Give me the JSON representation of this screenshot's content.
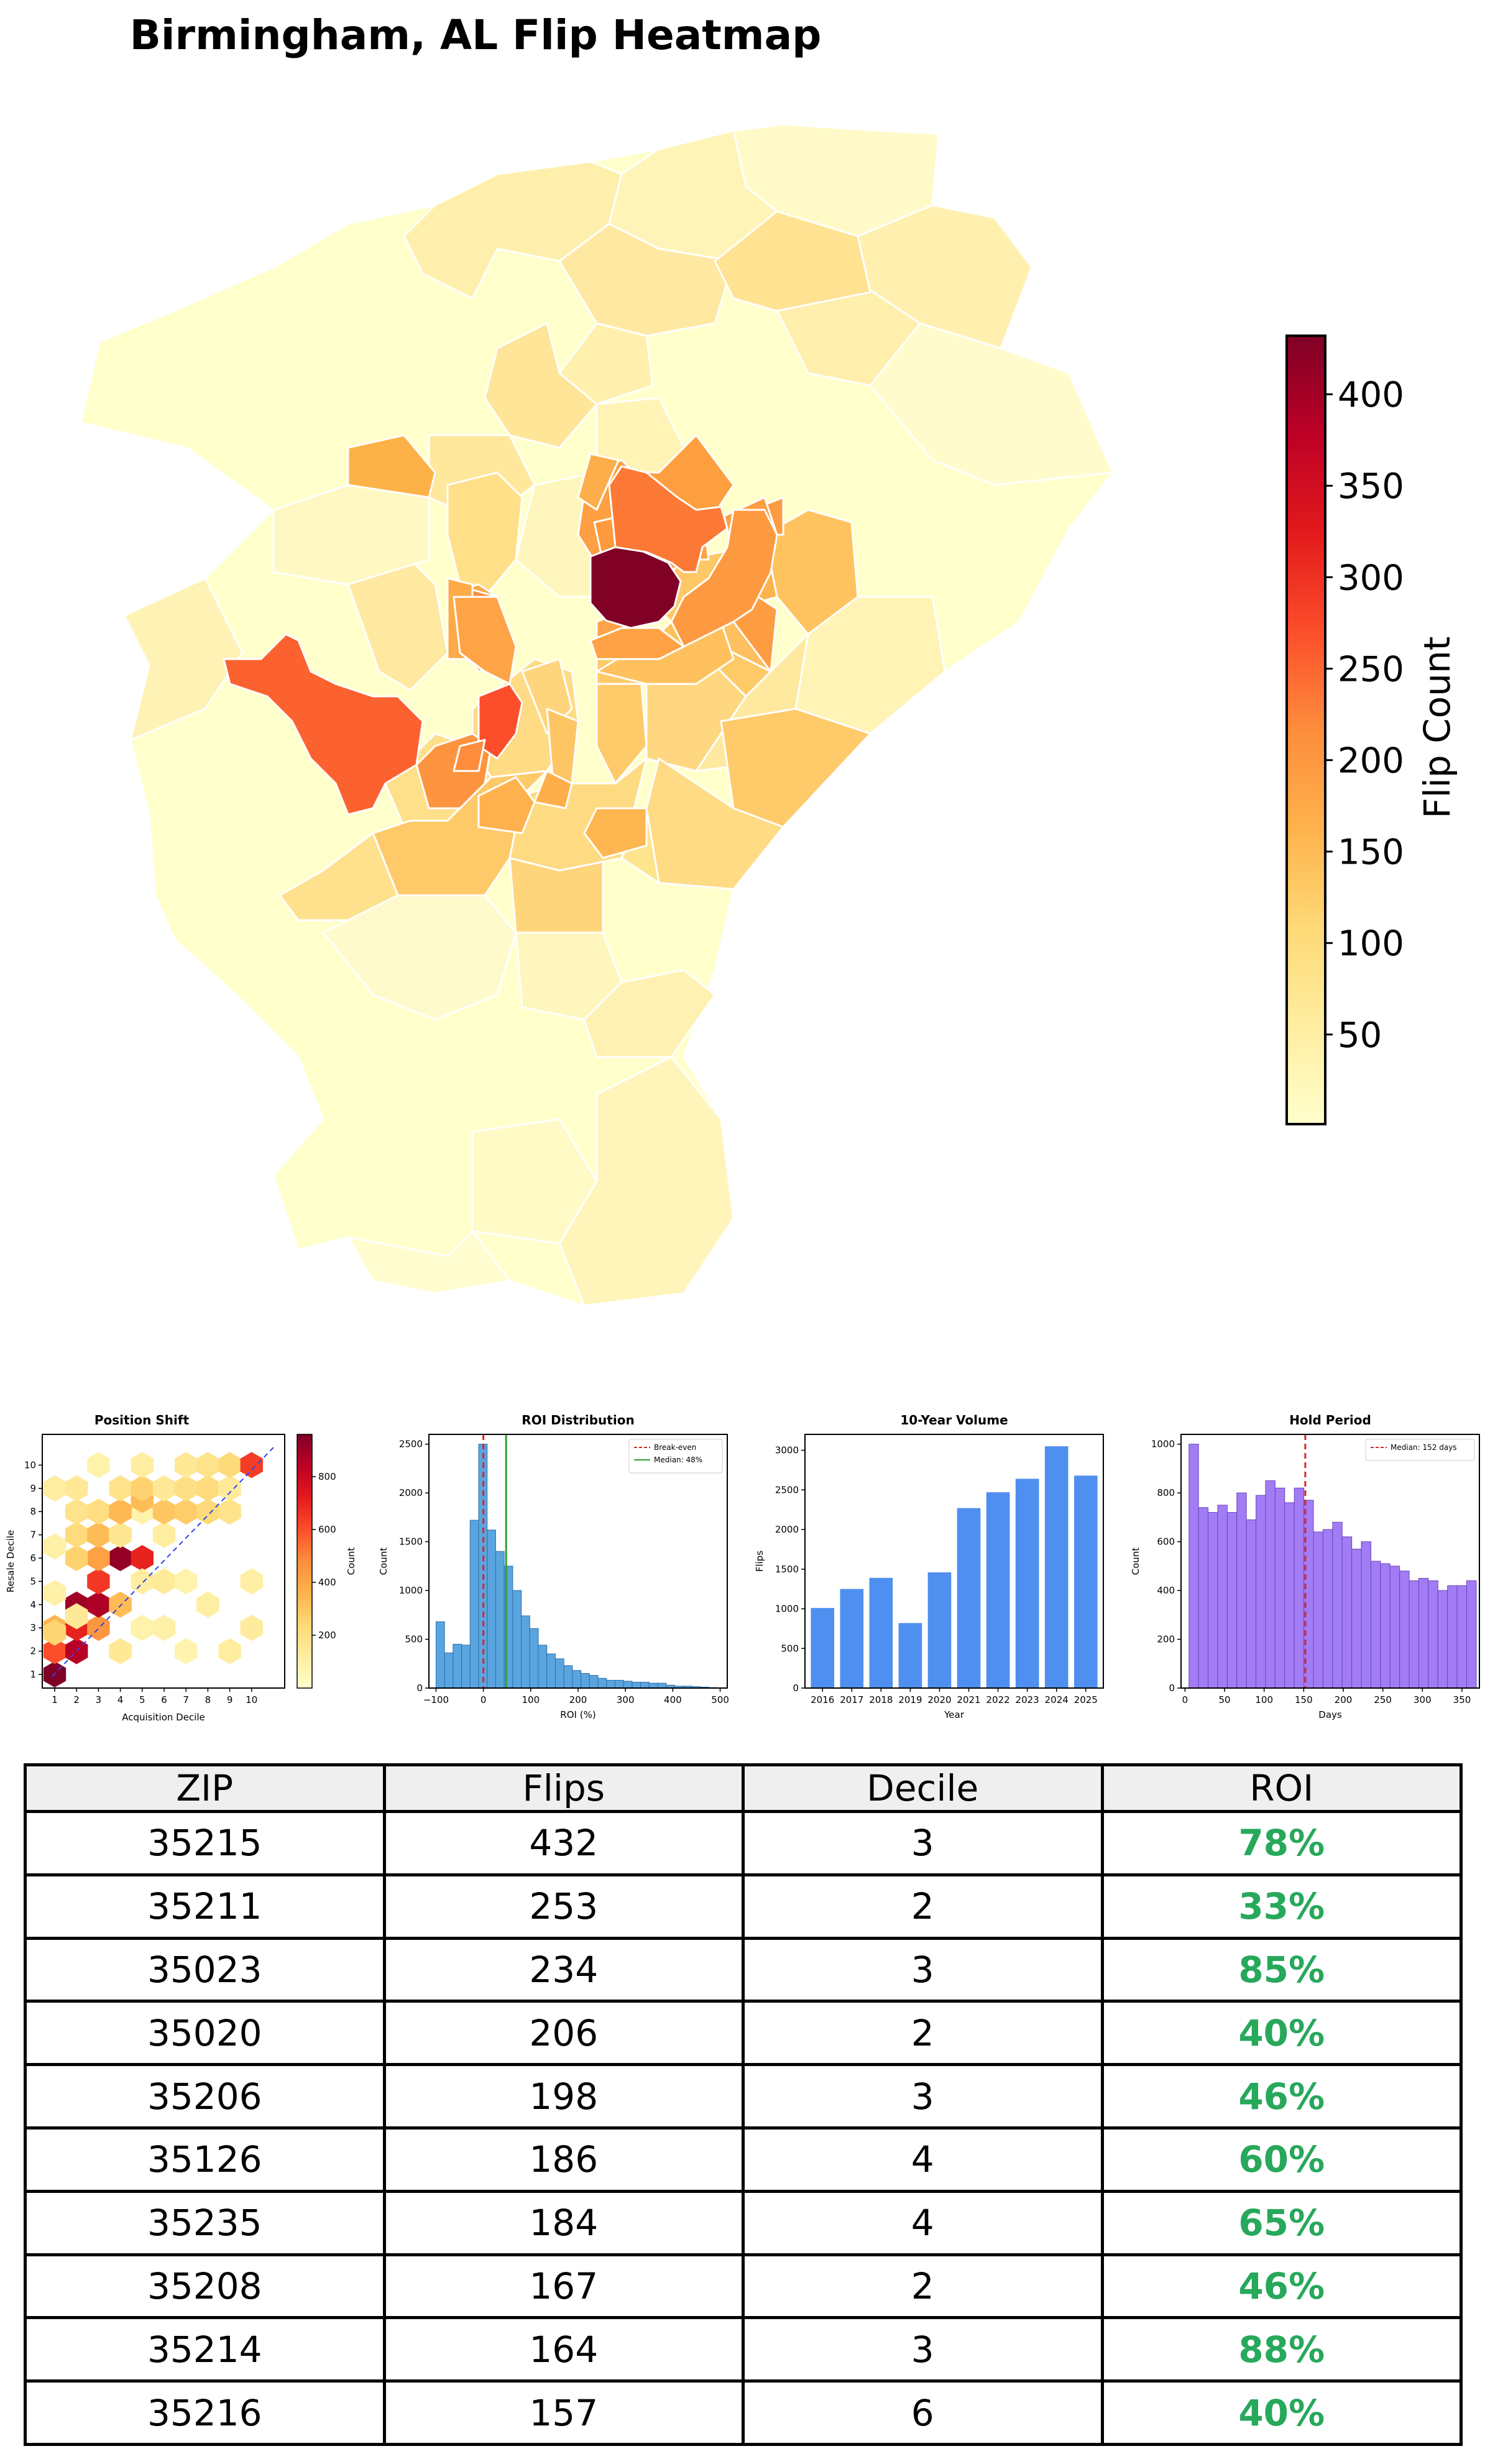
{
  "title": "Birmingham, AL Flip Heatmap",
  "colors": {
    "roi_green": "#27a85b",
    "hist_blue": "#5aa5e0",
    "bar_blue": "#4f8ff0",
    "hold_purple": "#a27cf5",
    "breakeven_red": "#d62728",
    "median_green": "#2ca02c"
  },
  "colorbar": {
    "label": "Flip Count",
    "ticks": [
      50,
      100,
      150,
      200,
      250,
      300,
      350,
      400
    ],
    "min": 1,
    "max": 432
  },
  "map_regions": [
    {
      "zip": "35215",
      "flips": 432
    },
    {
      "zip": "35211",
      "flips": 253
    },
    {
      "zip": "35023",
      "flips": 234
    },
    {
      "zip": "35020",
      "flips": 206
    },
    {
      "zip": "35206",
      "flips": 198
    },
    {
      "zip": "35126",
      "flips": 186
    },
    {
      "zip": "35235",
      "flips": 184
    },
    {
      "zip": "35208",
      "flips": 167
    },
    {
      "zip": "35214",
      "flips": 164
    },
    {
      "zip": "35216",
      "flips": 157
    }
  ],
  "chart_data": [
    {
      "type": "heatmap",
      "title": "Position Shift",
      "xlabel": "Acquisition Decile",
      "ylabel": "Resale Decile",
      "xticks": [
        "1",
        "2",
        "3",
        "4",
        "5",
        "6",
        "7",
        "8",
        "9",
        "10"
      ],
      "yticks": [
        "1",
        "2",
        "3",
        "4",
        "5",
        "6",
        "7",
        "8",
        "9",
        "10"
      ],
      "colorbar_label": "Count",
      "colorbar_ticks": [
        200,
        400,
        600,
        800
      ],
      "vmax": 960,
      "cells": [
        [
          1,
          1,
          960
        ],
        [
          1,
          2,
          600
        ],
        [
          2,
          2,
          850
        ],
        [
          1,
          3,
          350
        ],
        [
          2,
          3,
          700
        ],
        [
          3,
          3,
          450
        ],
        [
          2,
          4,
          900
        ],
        [
          3,
          4,
          870
        ],
        [
          2,
          3.5,
          150
        ],
        [
          3,
          5,
          650
        ],
        [
          4,
          4,
          330
        ],
        [
          4,
          6,
          920
        ],
        [
          5,
          6,
          700
        ],
        [
          3,
          6,
          420
        ],
        [
          2,
          6,
          260
        ],
        [
          1,
          4.5,
          100
        ],
        [
          1,
          6.5,
          100
        ],
        [
          2,
          7,
          220
        ],
        [
          3,
          7,
          330
        ],
        [
          4,
          7,
          160
        ],
        [
          5,
          8,
          90
        ],
        [
          6,
          7,
          120
        ],
        [
          2,
          8,
          180
        ],
        [
          3,
          8,
          210
        ],
        [
          4,
          8,
          340
        ],
        [
          5,
          8.5,
          330
        ],
        [
          6,
          8,
          300
        ],
        [
          7,
          8,
          280
        ],
        [
          8,
          8,
          230
        ],
        [
          9,
          8,
          180
        ],
        [
          1,
          9,
          120
        ],
        [
          2,
          9,
          150
        ],
        [
          4,
          9,
          180
        ],
        [
          5,
          9,
          260
        ],
        [
          6,
          9,
          150
        ],
        [
          7,
          9,
          200
        ],
        [
          8,
          9,
          220
        ],
        [
          9,
          9,
          140
        ],
        [
          3,
          10,
          90
        ],
        [
          5,
          10,
          120
        ],
        [
          7,
          10,
          150
        ],
        [
          8,
          10,
          180
        ],
        [
          9,
          10,
          230
        ],
        [
          10,
          10,
          640
        ],
        [
          5,
          5,
          120
        ],
        [
          6,
          5,
          140
        ],
        [
          7,
          5,
          90
        ],
        [
          8,
          4,
          110
        ],
        [
          6,
          3,
          100
        ],
        [
          9,
          2,
          120
        ],
        [
          10,
          3,
          130
        ],
        [
          10,
          5,
          110
        ],
        [
          7,
          2,
          80
        ],
        [
          4,
          2,
          150
        ],
        [
          5,
          3,
          90
        ],
        [
          1,
          2.8,
          250
        ]
      ]
    },
    {
      "type": "bar",
      "title": "ROI Distribution",
      "xlabel": "ROI (%)",
      "ylabel": "Count",
      "xlim": [
        -115,
        515
      ],
      "ylim": [
        0,
        2600
      ],
      "xticks": [
        -100,
        0,
        100,
        200,
        300,
        400,
        500
      ],
      "yticks": [
        0,
        500,
        1000,
        1500,
        2000,
        2500
      ],
      "bin_width": 18,
      "bin_starts": [
        -100,
        -82,
        -64,
        -46,
        -28,
        -10,
        8,
        26,
        44,
        62,
        80,
        98,
        116,
        134,
        152,
        170,
        188,
        206,
        224,
        242,
        260,
        278,
        296,
        314,
        332,
        350,
        368,
        386,
        404,
        422,
        440,
        458,
        476
      ],
      "values": [
        680,
        360,
        450,
        440,
        1720,
        2500,
        1620,
        1400,
        1250,
        1000,
        740,
        610,
        440,
        350,
        300,
        230,
        180,
        150,
        130,
        100,
        80,
        80,
        70,
        60,
        60,
        50,
        50,
        30,
        20,
        20,
        15,
        10,
        5
      ],
      "vlines": [
        {
          "x": 0,
          "label": "Break-even",
          "style": "dashed"
        },
        {
          "x": 48,
          "label": "Median: 48%",
          "style": "solid"
        }
      ]
    },
    {
      "type": "bar",
      "title": "10-Year Volume",
      "xlabel": "Year",
      "ylabel": "Flips",
      "ylim": [
        0,
        3200
      ],
      "yticks": [
        0,
        500,
        1000,
        1500,
        2000,
        2500,
        3000
      ],
      "categories": [
        "2016",
        "2017",
        "2018",
        "2019",
        "2020",
        "2021",
        "2022",
        "2023",
        "2024",
        "2025"
      ],
      "values": [
        1010,
        1250,
        1390,
        820,
        1460,
        2270,
        2470,
        2640,
        3050,
        2680
      ]
    },
    {
      "type": "bar",
      "title": "Hold Period",
      "xlabel": "Days",
      "ylabel": "Count",
      "xlim": [
        -5,
        372
      ],
      "ylim": [
        0,
        1040
      ],
      "xticks": [
        0,
        50,
        100,
        150,
        200,
        250,
        300,
        350
      ],
      "yticks": [
        0,
        200,
        400,
        600,
        800,
        1000
      ],
      "bin_width": 12.1,
      "bin_starts": [
        5,
        17.1,
        29.2,
        41.3,
        53.4,
        65.5,
        77.6,
        89.7,
        101.8,
        113.9,
        126,
        138.1,
        150.2,
        162.3,
        174.4,
        186.5,
        198.6,
        210.7,
        222.8,
        234.9,
        247,
        259.1,
        271.2,
        283.3,
        295.4,
        307.5,
        319.6,
        331.7,
        343.8,
        355.9
      ],
      "values": [
        1000,
        740,
        720,
        750,
        720,
        800,
        690,
        790,
        850,
        820,
        760,
        820,
        770,
        640,
        650,
        680,
        620,
        570,
        600,
        520,
        510,
        500,
        480,
        440,
        450,
        440,
        400,
        420,
        420,
        440
      ],
      "vlines": [
        {
          "x": 152,
          "label": "Median: 152 days",
          "style": "dashed"
        }
      ]
    }
  ],
  "table": {
    "headers": [
      "ZIP",
      "Flips",
      "Decile",
      "ROI"
    ],
    "rows": [
      [
        "35215",
        "432",
        "3",
        "78%"
      ],
      [
        "35211",
        "253",
        "2",
        "33%"
      ],
      [
        "35023",
        "234",
        "3",
        "85%"
      ],
      [
        "35020",
        "206",
        "2",
        "40%"
      ],
      [
        "35206",
        "198",
        "3",
        "46%"
      ],
      [
        "35126",
        "186",
        "4",
        "60%"
      ],
      [
        "35235",
        "184",
        "4",
        "65%"
      ],
      [
        "35208",
        "167",
        "2",
        "46%"
      ],
      [
        "35214",
        "164",
        "3",
        "88%"
      ],
      [
        "35216",
        "157",
        "6",
        "40%"
      ]
    ]
  }
}
